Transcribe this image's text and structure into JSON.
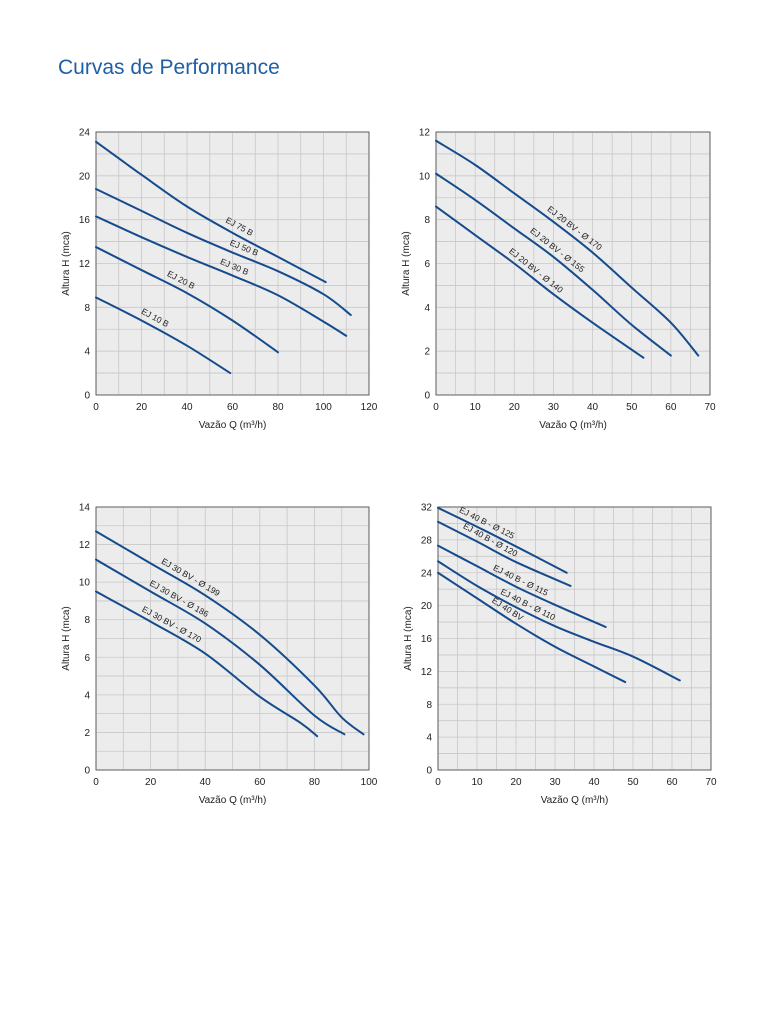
{
  "page": {
    "title": "Curvas de Performance"
  },
  "colors": {
    "curve": "#154b8d",
    "title": "#1f5fa6",
    "plot_bg": "#ececec",
    "grid": "#c8c8c8"
  },
  "chart_data": [
    {
      "type": "line",
      "xlabel": "Vazão Q (m³/h)",
      "ylabel": "Altura H (mca)",
      "xlim": [
        0,
        120
      ],
      "ylim": [
        0,
        24
      ],
      "xticks": [
        0,
        20,
        40,
        60,
        80,
        100,
        120
      ],
      "yticks": [
        0,
        4,
        8,
        12,
        16,
        20,
        24
      ],
      "grid": true,
      "series": [
        {
          "name": "EJ 75 B",
          "points": [
            [
              0,
              23.1
            ],
            [
              20,
              20.1
            ],
            [
              40,
              17.2
            ],
            [
              60,
              14.8
            ],
            [
              80,
              12.6
            ],
            [
              101,
              10.3
            ]
          ]
        },
        {
          "name": "EJ 50 B",
          "points": [
            [
              0,
              18.8
            ],
            [
              20,
              16.8
            ],
            [
              40,
              14.8
            ],
            [
              60,
              13.0
            ],
            [
              80,
              11.3
            ],
            [
              100,
              9.2
            ],
            [
              112,
              7.3
            ]
          ]
        },
        {
          "name": "EJ 30 B",
          "points": [
            [
              0,
              16.3
            ],
            [
              20,
              14.4
            ],
            [
              40,
              12.6
            ],
            [
              60,
              10.9
            ],
            [
              80,
              9.1
            ],
            [
              100,
              6.7
            ],
            [
              110,
              5.4
            ]
          ]
        },
        {
          "name": "EJ 20 B",
          "points": [
            [
              0,
              13.5
            ],
            [
              20,
              11.4
            ],
            [
              40,
              9.3
            ],
            [
              60,
              6.8
            ],
            [
              80,
              3.9
            ]
          ]
        },
        {
          "name": "EJ 10 B",
          "points": [
            [
              0,
              8.9
            ],
            [
              20,
              6.8
            ],
            [
              40,
              4.5
            ],
            [
              59,
              2.0
            ]
          ]
        }
      ]
    },
    {
      "type": "line",
      "xlabel": "Vazão Q (m³/h)",
      "ylabel": "Altura H (mca)",
      "xlim": [
        0,
        70
      ],
      "ylim": [
        0,
        12
      ],
      "xticks": [
        0,
        10,
        20,
        30,
        40,
        50,
        60,
        70
      ],
      "yticks": [
        0,
        2,
        4,
        6,
        8,
        10,
        12
      ],
      "grid": true,
      "series": [
        {
          "name": "EJ 20 BV - Ø 170",
          "points": [
            [
              0,
              11.6
            ],
            [
              10,
              10.5
            ],
            [
              20,
              9.2
            ],
            [
              30,
              7.9
            ],
            [
              40,
              6.5
            ],
            [
              50,
              4.9
            ],
            [
              60,
              3.3
            ],
            [
              67,
              1.8
            ]
          ]
        },
        {
          "name": "EJ 20 BV - Ø 155",
          "points": [
            [
              0,
              10.1
            ],
            [
              10,
              8.9
            ],
            [
              20,
              7.6
            ],
            [
              30,
              6.3
            ],
            [
              40,
              4.8
            ],
            [
              50,
              3.2
            ],
            [
              60,
              1.8
            ]
          ]
        },
        {
          "name": "EJ 20 BV - Ø 140",
          "points": [
            [
              0,
              8.6
            ],
            [
              10,
              7.3
            ],
            [
              20,
              6.0
            ],
            [
              30,
              4.6
            ],
            [
              40,
              3.3
            ],
            [
              53,
              1.7
            ]
          ]
        }
      ]
    },
    {
      "type": "line",
      "xlabel": "Vazão Q (m³/h)",
      "ylabel": "Altura H (mca)",
      "xlim": [
        0,
        100
      ],
      "ylim": [
        0,
        14
      ],
      "xticks": [
        0,
        20,
        40,
        60,
        80,
        100
      ],
      "yticks": [
        0,
        2,
        4,
        6,
        8,
        10,
        12,
        14
      ],
      "grid": true,
      "series": [
        {
          "name": "EJ 30 BV - Ø 199",
          "points": [
            [
              0,
              12.7
            ],
            [
              20,
              11.0
            ],
            [
              40,
              9.3
            ],
            [
              60,
              7.2
            ],
            [
              80,
              4.5
            ],
            [
              90,
              2.8
            ],
            [
              98,
              1.9
            ]
          ]
        },
        {
          "name": "EJ 30 BV - Ø 186",
          "points": [
            [
              0,
              11.2
            ],
            [
              20,
              9.5
            ],
            [
              40,
              7.8
            ],
            [
              60,
              5.6
            ],
            [
              80,
              2.9
            ],
            [
              91,
              1.9
            ]
          ]
        },
        {
          "name": "EJ 30 BV - Ø 170",
          "points": [
            [
              0,
              9.5
            ],
            [
              20,
              7.9
            ],
            [
              40,
              6.2
            ],
            [
              60,
              3.9
            ],
            [
              75,
              2.5
            ],
            [
              81,
              1.8
            ]
          ]
        }
      ]
    },
    {
      "type": "line",
      "xlabel": "Vazão Q (m³/h)",
      "ylabel": "Altura H (mca)",
      "xlim": [
        0,
        70
      ],
      "ylim": [
        0,
        32
      ],
      "xticks": [
        0,
        10,
        20,
        30,
        40,
        50,
        60,
        70
      ],
      "yticks": [
        0,
        4,
        8,
        12,
        16,
        20,
        24,
        28,
        32
      ],
      "grid": true,
      "series": [
        {
          "name": "EJ 40 B - Ø 125",
          "points": [
            [
              0,
              31.9
            ],
            [
              10,
              29.6
            ],
            [
              20,
              27.2
            ],
            [
              33,
              24.0
            ]
          ]
        },
        {
          "name": "EJ 40 B - Ø 120",
          "points": [
            [
              0,
              30.2
            ],
            [
              10,
              27.8
            ],
            [
              20,
              25.3
            ],
            [
              34,
              22.4
            ]
          ]
        },
        {
          "name": "EJ 40 B - Ø 115",
          "points": [
            [
              0,
              27.3
            ],
            [
              10,
              24.8
            ],
            [
              20,
              22.3
            ],
            [
              30,
              20.1
            ],
            [
              43,
              17.4
            ]
          ]
        },
        {
          "name": "EJ 40 B - Ø 110",
          "points": [
            [
              0,
              25.4
            ],
            [
              10,
              22.4
            ],
            [
              20,
              19.8
            ],
            [
              30,
              17.5
            ],
            [
              40,
              15.6
            ],
            [
              50,
              13.8
            ],
            [
              62,
              10.9
            ]
          ]
        },
        {
          "name": "EJ 40 BV",
          "points": [
            [
              0,
              24.0
            ],
            [
              10,
              20.9
            ],
            [
              20,
              17.8
            ],
            [
              30,
              15.0
            ],
            [
              40,
              12.6
            ],
            [
              48,
              10.7
            ]
          ]
        }
      ]
    }
  ]
}
